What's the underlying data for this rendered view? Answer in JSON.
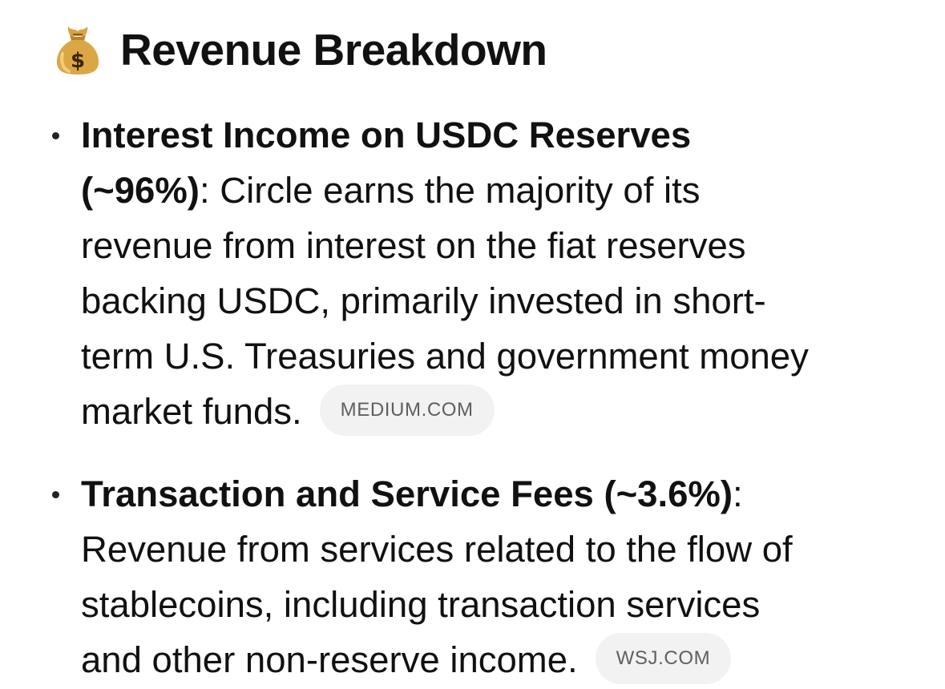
{
  "heading": {
    "icon": "money-bag-icon",
    "title": "Revenue Breakdown"
  },
  "items": [
    {
      "title_line1": "Interest Income on USDC Reserves",
      "title_line2": "(~96%)",
      "line2_rest": ": Circle earns the majority of its",
      "line3": "revenue from interest on the fiat reserves",
      "line4": "backing USDC, primarily invested in short-",
      "line5": "term U.S. Treasuries and government money",
      "line6": "market funds.",
      "source": "MEDIUM.COM"
    },
    {
      "title": "Transaction and Service Fees (~3.6%)",
      "title_rest": ":",
      "line2": "Revenue from services related to the flow of",
      "line3": "stablecoins, including transaction services",
      "line4": "and other non-reserve income.",
      "source": "WSJ.COM"
    }
  ],
  "colors": {
    "text": "#111111",
    "chip_bg": "#f2f2f2",
    "chip_text": "#5f5f5f",
    "bag": "#d9a441"
  }
}
